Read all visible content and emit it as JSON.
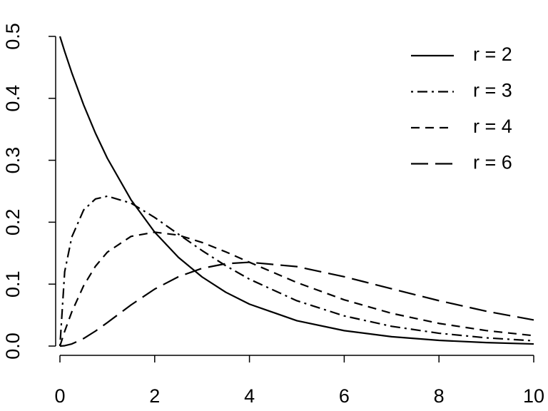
{
  "chart_data": {
    "type": "line",
    "x": [
      0,
      0.1,
      0.25,
      0.5,
      0.75,
      1,
      1.5,
      2,
      2.5,
      3,
      3.5,
      4,
      5,
      6,
      7,
      8,
      9,
      10
    ],
    "series": [
      {
        "name": "r = 2",
        "color": "#000000",
        "dash": "solid",
        "values": [
          0.5,
          0.4756,
          0.4413,
          0.3894,
          0.3436,
          0.3033,
          0.2362,
          0.1839,
          0.1433,
          0.1116,
          0.0869,
          0.0677,
          0.041,
          0.0249,
          0.0151,
          0.0092,
          0.0056,
          0.0034
        ]
      },
      {
        "name": "r = 3",
        "color": "#000000",
        "dash": "dotdash",
        "values": [
          0,
          0.12,
          0.176,
          0.2197,
          0.2375,
          0.242,
          0.2308,
          0.2076,
          0.1807,
          0.1542,
          0.1297,
          0.108,
          0.0732,
          0.0487,
          0.0319,
          0.0207,
          0.0133,
          0.0085
        ]
      },
      {
        "name": "r = 4",
        "color": "#000000",
        "dash": "dashed",
        "values": [
          0,
          0.0238,
          0.0552,
          0.0974,
          0.1289,
          0.1516,
          0.1771,
          0.1839,
          0.1791,
          0.1673,
          0.1521,
          0.1353,
          0.1026,
          0.0747,
          0.0529,
          0.0366,
          0.025,
          0.0168
        ]
      },
      {
        "name": "r = 6",
        "color": "#000000",
        "dash": "longdash",
        "values": [
          0,
          0.0006,
          0.0034,
          0.0122,
          0.0242,
          0.0379,
          0.0664,
          0.092,
          0.1119,
          0.1255,
          0.133,
          0.1353,
          0.1283,
          0.112,
          0.0925,
          0.0733,
          0.0562,
          0.0421
        ]
      }
    ],
    "xlim": [
      0,
      10
    ],
    "xticks": [
      0,
      2,
      4,
      6,
      8,
      10
    ],
    "ylim": [
      0,
      0.5
    ],
    "yticks": [
      {
        "value": 0,
        "label": "0.0"
      },
      0.1,
      0.2,
      0.3,
      0.4,
      0.5
    ],
    "legend": "topright"
  }
}
